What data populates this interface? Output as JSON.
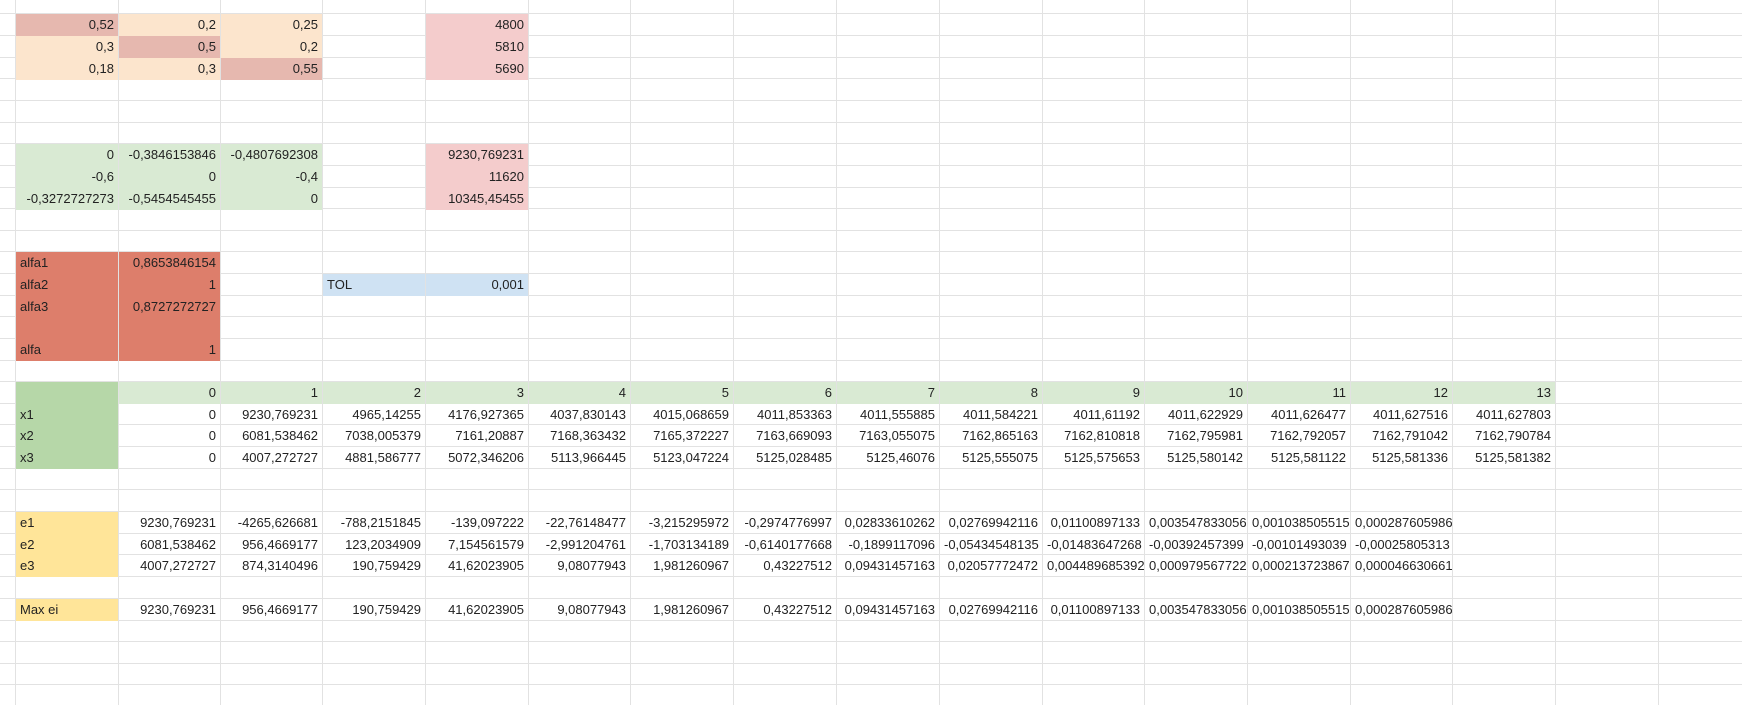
{
  "colors": {
    "grid": "#e2e2e2",
    "peach": "#fce5cd",
    "rose": "#e6b8af",
    "pink": "#f4cccc",
    "light_green": "#d9ead3",
    "green": "#b6d7a8",
    "red": "#dd7e6b",
    "blue": "#cfe2f3",
    "yellow": "#ffe599"
  },
  "sheet": {
    "cells": [
      {
        "r": 0,
        "c": 0,
        "v": "0,52",
        "bg": "rose",
        "a": "num"
      },
      {
        "r": 0,
        "c": 1,
        "v": "0,2",
        "bg": "peach",
        "a": "num"
      },
      {
        "r": 0,
        "c": 2,
        "v": "0,25",
        "bg": "peach",
        "a": "num"
      },
      {
        "r": 0,
        "c": 4,
        "v": "4800",
        "bg": "pink",
        "a": "num"
      },
      {
        "r": 1,
        "c": 0,
        "v": "0,3",
        "bg": "peach",
        "a": "num"
      },
      {
        "r": 1,
        "c": 1,
        "v": "0,5",
        "bg": "rose",
        "a": "num"
      },
      {
        "r": 1,
        "c": 2,
        "v": "0,2",
        "bg": "peach",
        "a": "num"
      },
      {
        "r": 1,
        "c": 4,
        "v": "5810",
        "bg": "pink",
        "a": "num"
      },
      {
        "r": 2,
        "c": 0,
        "v": "0,18",
        "bg": "peach",
        "a": "num"
      },
      {
        "r": 2,
        "c": 1,
        "v": "0,3",
        "bg": "peach",
        "a": "num"
      },
      {
        "r": 2,
        "c": 2,
        "v": "0,55",
        "bg": "rose",
        "a": "num"
      },
      {
        "r": 2,
        "c": 4,
        "v": "5690",
        "bg": "pink",
        "a": "num"
      },
      {
        "r": 6,
        "c": 0,
        "v": "0",
        "bg": "light_green",
        "a": "num"
      },
      {
        "r": 6,
        "c": 1,
        "v": "-0,3846153846",
        "bg": "light_green",
        "a": "num"
      },
      {
        "r": 6,
        "c": 2,
        "v": "-0,4807692308",
        "bg": "light_green",
        "a": "num"
      },
      {
        "r": 6,
        "c": 4,
        "v": "9230,769231",
        "bg": "pink",
        "a": "num"
      },
      {
        "r": 7,
        "c": 0,
        "v": "-0,6",
        "bg": "light_green",
        "a": "num"
      },
      {
        "r": 7,
        "c": 1,
        "v": "0",
        "bg": "light_green",
        "a": "num"
      },
      {
        "r": 7,
        "c": 2,
        "v": "-0,4",
        "bg": "light_green",
        "a": "num"
      },
      {
        "r": 7,
        "c": 4,
        "v": "11620",
        "bg": "pink",
        "a": "num"
      },
      {
        "r": 8,
        "c": 0,
        "v": "-0,3272727273",
        "bg": "light_green",
        "a": "num"
      },
      {
        "r": 8,
        "c": 1,
        "v": "-0,5454545455",
        "bg": "light_green",
        "a": "num"
      },
      {
        "r": 8,
        "c": 2,
        "v": "0",
        "bg": "light_green",
        "a": "num"
      },
      {
        "r": 8,
        "c": 4,
        "v": "10345,45455",
        "bg": "pink",
        "a": "num"
      },
      {
        "r": 11,
        "c": 0,
        "v": "alfa1",
        "bg": "red",
        "a": "txt"
      },
      {
        "r": 11,
        "c": 1,
        "v": "0,8653846154",
        "bg": "red",
        "a": "num"
      },
      {
        "r": 12,
        "c": 0,
        "v": "alfa2",
        "bg": "red",
        "a": "txt"
      },
      {
        "r": 12,
        "c": 1,
        "v": "1",
        "bg": "red",
        "a": "num"
      },
      {
        "r": 12,
        "c": 3,
        "v": "TOL",
        "bg": "blue",
        "a": "txt"
      },
      {
        "r": 12,
        "c": 4,
        "v": "0,001",
        "bg": "blue",
        "a": "num"
      },
      {
        "r": 13,
        "c": 0,
        "v": "alfa3",
        "bg": "red",
        "a": "txt"
      },
      {
        "r": 13,
        "c": 1,
        "v": "0,8727272727",
        "bg": "red",
        "a": "num"
      },
      {
        "r": 14,
        "c": 0,
        "v": "",
        "bg": "red",
        "a": "txt"
      },
      {
        "r": 14,
        "c": 1,
        "v": "",
        "bg": "red",
        "a": "num"
      },
      {
        "r": 15,
        "c": 0,
        "v": "alfa",
        "bg": "red",
        "a": "txt"
      },
      {
        "r": 15,
        "c": 1,
        "v": "1",
        "bg": "red",
        "a": "num"
      },
      {
        "r": 17,
        "c": 0,
        "v": "",
        "bg": "green",
        "a": "txt"
      },
      {
        "r": 17,
        "c": 1,
        "v": "0",
        "bg": "light_green",
        "a": "num"
      },
      {
        "r": 17,
        "c": 2,
        "v": "1",
        "bg": "light_green",
        "a": "num"
      },
      {
        "r": 17,
        "c": 3,
        "v": "2",
        "bg": "light_green",
        "a": "num"
      },
      {
        "r": 17,
        "c": 4,
        "v": "3",
        "bg": "light_green",
        "a": "num"
      },
      {
        "r": 17,
        "c": 5,
        "v": "4",
        "bg": "light_green",
        "a": "num"
      },
      {
        "r": 17,
        "c": 6,
        "v": "5",
        "bg": "light_green",
        "a": "num"
      },
      {
        "r": 17,
        "c": 7,
        "v": "6",
        "bg": "light_green",
        "a": "num"
      },
      {
        "r": 17,
        "c": 8,
        "v": "7",
        "bg": "light_green",
        "a": "num"
      },
      {
        "r": 17,
        "c": 9,
        "v": "8",
        "bg": "light_green",
        "a": "num"
      },
      {
        "r": 17,
        "c": 10,
        "v": "9",
        "bg": "light_green",
        "a": "num"
      },
      {
        "r": 17,
        "c": 11,
        "v": "10",
        "bg": "light_green",
        "a": "num"
      },
      {
        "r": 17,
        "c": 12,
        "v": "11",
        "bg": "light_green",
        "a": "num"
      },
      {
        "r": 17,
        "c": 13,
        "v": "12",
        "bg": "light_green",
        "a": "num"
      },
      {
        "r": 17,
        "c": 14,
        "v": "13",
        "bg": "light_green",
        "a": "num"
      },
      {
        "r": 18,
        "c": 0,
        "v": "x1",
        "bg": "green",
        "a": "txt"
      },
      {
        "r": 18,
        "c": 1,
        "v": "0",
        "a": "num"
      },
      {
        "r": 18,
        "c": 2,
        "v": "9230,769231",
        "a": "num"
      },
      {
        "r": 18,
        "c": 3,
        "v": "4965,14255",
        "a": "num"
      },
      {
        "r": 18,
        "c": 4,
        "v": "4176,927365",
        "a": "num"
      },
      {
        "r": 18,
        "c": 5,
        "v": "4037,830143",
        "a": "num"
      },
      {
        "r": 18,
        "c": 6,
        "v": "4015,068659",
        "a": "num"
      },
      {
        "r": 18,
        "c": 7,
        "v": "4011,853363",
        "a": "num"
      },
      {
        "r": 18,
        "c": 8,
        "v": "4011,555885",
        "a": "num"
      },
      {
        "r": 18,
        "c": 9,
        "v": "4011,584221",
        "a": "num"
      },
      {
        "r": 18,
        "c": 10,
        "v": "4011,61192",
        "a": "num"
      },
      {
        "r": 18,
        "c": 11,
        "v": "4011,622929",
        "a": "num"
      },
      {
        "r": 18,
        "c": 12,
        "v": "4011,626477",
        "a": "num"
      },
      {
        "r": 18,
        "c": 13,
        "v": "4011,627516",
        "a": "num"
      },
      {
        "r": 18,
        "c": 14,
        "v": "4011,627803",
        "a": "num"
      },
      {
        "r": 19,
        "c": 0,
        "v": "x2",
        "bg": "green",
        "a": "txt"
      },
      {
        "r": 19,
        "c": 1,
        "v": "0",
        "a": "num"
      },
      {
        "r": 19,
        "c": 2,
        "v": "6081,538462",
        "a": "num"
      },
      {
        "r": 19,
        "c": 3,
        "v": "7038,005379",
        "a": "num"
      },
      {
        "r": 19,
        "c": 4,
        "v": "7161,20887",
        "a": "num"
      },
      {
        "r": 19,
        "c": 5,
        "v": "7168,363432",
        "a": "num"
      },
      {
        "r": 19,
        "c": 6,
        "v": "7165,372227",
        "a": "num"
      },
      {
        "r": 19,
        "c": 7,
        "v": "7163,669093",
        "a": "num"
      },
      {
        "r": 19,
        "c": 8,
        "v": "7163,055075",
        "a": "num"
      },
      {
        "r": 19,
        "c": 9,
        "v": "7162,865163",
        "a": "num"
      },
      {
        "r": 19,
        "c": 10,
        "v": "7162,810818",
        "a": "num"
      },
      {
        "r": 19,
        "c": 11,
        "v": "7162,795981",
        "a": "num"
      },
      {
        "r": 19,
        "c": 12,
        "v": "7162,792057",
        "a": "num"
      },
      {
        "r": 19,
        "c": 13,
        "v": "7162,791042",
        "a": "num"
      },
      {
        "r": 19,
        "c": 14,
        "v": "7162,790784",
        "a": "num"
      },
      {
        "r": 20,
        "c": 0,
        "v": "x3",
        "bg": "green",
        "a": "txt"
      },
      {
        "r": 20,
        "c": 1,
        "v": "0",
        "a": "num"
      },
      {
        "r": 20,
        "c": 2,
        "v": "4007,272727",
        "a": "num"
      },
      {
        "r": 20,
        "c": 3,
        "v": "4881,586777",
        "a": "num"
      },
      {
        "r": 20,
        "c": 4,
        "v": "5072,346206",
        "a": "num"
      },
      {
        "r": 20,
        "c": 5,
        "v": "5113,966445",
        "a": "num"
      },
      {
        "r": 20,
        "c": 6,
        "v": "5123,047224",
        "a": "num"
      },
      {
        "r": 20,
        "c": 7,
        "v": "5125,028485",
        "a": "num"
      },
      {
        "r": 20,
        "c": 8,
        "v": "5125,46076",
        "a": "num"
      },
      {
        "r": 20,
        "c": 9,
        "v": "5125,555075",
        "a": "num"
      },
      {
        "r": 20,
        "c": 10,
        "v": "5125,575653",
        "a": "num"
      },
      {
        "r": 20,
        "c": 11,
        "v": "5125,580142",
        "a": "num"
      },
      {
        "r": 20,
        "c": 12,
        "v": "5125,581122",
        "a": "num"
      },
      {
        "r": 20,
        "c": 13,
        "v": "5125,581336",
        "a": "num"
      },
      {
        "r": 20,
        "c": 14,
        "v": "5125,581382",
        "a": "num"
      },
      {
        "r": 23,
        "c": 0,
        "v": "e1",
        "bg": "yellow",
        "a": "txt"
      },
      {
        "r": 23,
        "c": 1,
        "v": "9230,769231",
        "a": "num"
      },
      {
        "r": 23,
        "c": 2,
        "v": "-4265,626681",
        "a": "num"
      },
      {
        "r": 23,
        "c": 3,
        "v": "-788,2151845",
        "a": "num"
      },
      {
        "r": 23,
        "c": 4,
        "v": "-139,097222",
        "a": "num"
      },
      {
        "r": 23,
        "c": 5,
        "v": "-22,76148477",
        "a": "num"
      },
      {
        "r": 23,
        "c": 6,
        "v": "-3,215295972",
        "a": "num"
      },
      {
        "r": 23,
        "c": 7,
        "v": "-0,2974776997",
        "a": "num"
      },
      {
        "r": 23,
        "c": 8,
        "v": "0,02833610262",
        "a": "num"
      },
      {
        "r": 23,
        "c": 9,
        "v": "0,02769942116",
        "a": "num"
      },
      {
        "r": 23,
        "c": 10,
        "v": "0,01100897133",
        "a": "num"
      },
      {
        "r": 23,
        "c": 11,
        "v": "0,003547833056",
        "a": "num"
      },
      {
        "r": 23,
        "c": 12,
        "v": "0,001038505515",
        "a": "num"
      },
      {
        "r": 23,
        "c": 13,
        "v": "0,000287605986",
        "a": "num"
      },
      {
        "r": 24,
        "c": 0,
        "v": "e2",
        "bg": "yellow",
        "a": "txt"
      },
      {
        "r": 24,
        "c": 1,
        "v": "6081,538462",
        "a": "num"
      },
      {
        "r": 24,
        "c": 2,
        "v": "956,4669177",
        "a": "num"
      },
      {
        "r": 24,
        "c": 3,
        "v": "123,2034909",
        "a": "num"
      },
      {
        "r": 24,
        "c": 4,
        "v": "7,154561579",
        "a": "num"
      },
      {
        "r": 24,
        "c": 5,
        "v": "-2,991204761",
        "a": "num"
      },
      {
        "r": 24,
        "c": 6,
        "v": "-1,703134189",
        "a": "num"
      },
      {
        "r": 24,
        "c": 7,
        "v": "-0,6140177668",
        "a": "num"
      },
      {
        "r": 24,
        "c": 8,
        "v": "-0,1899117096",
        "a": "num"
      },
      {
        "r": 24,
        "c": 9,
        "v": "-0,05434548135",
        "a": "num"
      },
      {
        "r": 24,
        "c": 10,
        "v": "-0,01483647268",
        "a": "num"
      },
      {
        "r": 24,
        "c": 11,
        "v": "-0,00392457399",
        "a": "num"
      },
      {
        "r": 24,
        "c": 12,
        "v": "-0,00101493039",
        "a": "num"
      },
      {
        "r": 24,
        "c": 13,
        "v": "-0,00025805313",
        "a": "num"
      },
      {
        "r": 25,
        "c": 0,
        "v": "e3",
        "bg": "yellow",
        "a": "txt"
      },
      {
        "r": 25,
        "c": 1,
        "v": "4007,272727",
        "a": "num"
      },
      {
        "r": 25,
        "c": 2,
        "v": "874,3140496",
        "a": "num"
      },
      {
        "r": 25,
        "c": 3,
        "v": "190,759429",
        "a": "num"
      },
      {
        "r": 25,
        "c": 4,
        "v": "41,62023905",
        "a": "num"
      },
      {
        "r": 25,
        "c": 5,
        "v": "9,08077943",
        "a": "num"
      },
      {
        "r": 25,
        "c": 6,
        "v": "1,981260967",
        "a": "num"
      },
      {
        "r": 25,
        "c": 7,
        "v": "0,43227512",
        "a": "num"
      },
      {
        "r": 25,
        "c": 8,
        "v": "0,09431457163",
        "a": "num"
      },
      {
        "r": 25,
        "c": 9,
        "v": "0,02057772472",
        "a": "num"
      },
      {
        "r": 25,
        "c": 10,
        "v": "0,004489685392",
        "a": "num"
      },
      {
        "r": 25,
        "c": 11,
        "v": "0,000979567722",
        "a": "num"
      },
      {
        "r": 25,
        "c": 12,
        "v": "0,000213723867",
        "a": "num"
      },
      {
        "r": 25,
        "c": 13,
        "v": "0,000046630661",
        "a": "num"
      },
      {
        "r": 27,
        "c": 0,
        "v": "Max ei",
        "bg": "yellow",
        "a": "txt"
      },
      {
        "r": 27,
        "c": 1,
        "v": "9230,769231",
        "a": "num"
      },
      {
        "r": 27,
        "c": 2,
        "v": "956,4669177",
        "a": "num"
      },
      {
        "r": 27,
        "c": 3,
        "v": "190,759429",
        "a": "num"
      },
      {
        "r": 27,
        "c": 4,
        "v": "41,62023905",
        "a": "num"
      },
      {
        "r": 27,
        "c": 5,
        "v": "9,08077943",
        "a": "num"
      },
      {
        "r": 27,
        "c": 6,
        "v": "1,981260967",
        "a": "num"
      },
      {
        "r": 27,
        "c": 7,
        "v": "0,43227512",
        "a": "num"
      },
      {
        "r": 27,
        "c": 8,
        "v": "0,09431457163",
        "a": "num"
      },
      {
        "r": 27,
        "c": 9,
        "v": "0,02769942116",
        "a": "num"
      },
      {
        "r": 27,
        "c": 10,
        "v": "0,01100897133",
        "a": "num"
      },
      {
        "r": 27,
        "c": 11,
        "v": "0,003547833056",
        "a": "num"
      },
      {
        "r": 27,
        "c": 12,
        "v": "0,001038505515",
        "a": "num"
      },
      {
        "r": 27,
        "c": 13,
        "v": "0,000287605986",
        "a": "num"
      }
    ]
  }
}
